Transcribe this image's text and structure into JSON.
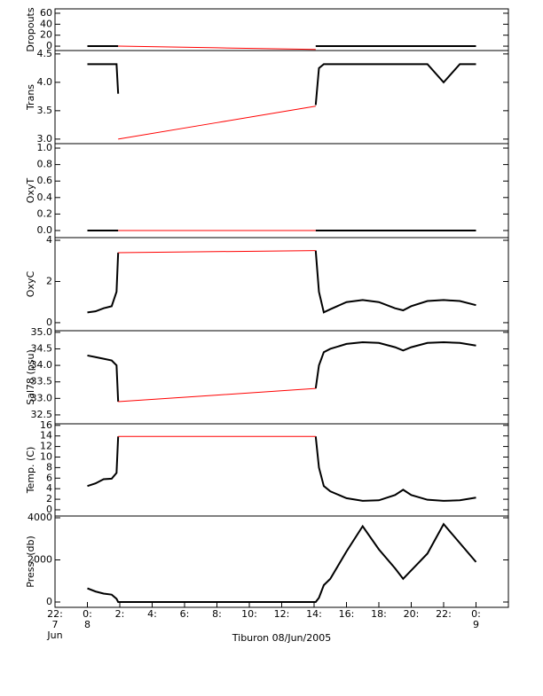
{
  "chart_data": [
    {
      "type": "line",
      "ylabel": "Dropouts",
      "x": [
        0,
        0.5,
        1,
        1.5,
        1.8,
        1.9,
        8,
        14.1,
        14.3,
        14.6,
        15,
        16,
        17,
        18,
        19,
        19.5,
        20,
        21,
        22,
        23,
        24
      ],
      "xlim": [
        -2,
        26
      ],
      "ylim": [
        -8,
        68
      ],
      "yticks": [
        0,
        20,
        40,
        60
      ],
      "series": [
        {
          "color": "#000000",
          "values": [
            0,
            0,
            0,
            0,
            0,
            0,
            null,
            0,
            0,
            0,
            0,
            0,
            0,
            0,
            0,
            0,
            0,
            0,
            0,
            0,
            0
          ]
        },
        {
          "color": "#ff0000",
          "values": [
            null,
            null,
            null,
            null,
            null,
            0,
            -3,
            -6,
            null,
            null,
            null,
            null,
            null,
            null,
            null,
            null,
            null,
            null,
            null,
            null,
            null
          ]
        }
      ]
    },
    {
      "type": "line",
      "ylabel": "Trans",
      "x": [
        0,
        0.5,
        1,
        1.5,
        1.8,
        1.9,
        8,
        14.1,
        14.3,
        14.6,
        15,
        16,
        17,
        18,
        19,
        19.5,
        20,
        21,
        22,
        23,
        24
      ],
      "xlim": [
        -2,
        26
      ],
      "ylim": [
        2.92,
        4.56
      ],
      "yticks": [
        {
          "value": 3.0,
          "label": "3.0"
        },
        3.5,
        {
          "value": 4.0,
          "label": "4.0"
        },
        4.5
      ],
      "series": [
        {
          "color": "#000000",
          "values": [
            4.32,
            4.32,
            4.32,
            4.32,
            4.32,
            3.8,
            null,
            3.6,
            4.25,
            4.32,
            4.32,
            4.32,
            4.32,
            4.32,
            4.32,
            4.32,
            4.32,
            4.32,
            4.0,
            4.32,
            4.32
          ]
        },
        {
          "color": "#ff0000",
          "values": [
            null,
            null,
            null,
            null,
            null,
            3.0,
            3.29,
            3.58,
            null,
            null,
            null,
            null,
            null,
            null,
            null,
            null,
            null,
            null,
            null,
            null,
            null
          ]
        }
      ]
    },
    {
      "type": "line",
      "ylabel": "OxyT",
      "x": [
        0,
        0.5,
        1,
        1.5,
        1.8,
        1.9,
        8,
        14.1,
        14.3,
        14.6,
        15,
        16,
        17,
        18,
        19,
        19.5,
        20,
        21,
        22,
        23,
        24
      ],
      "xlim": [
        -2,
        26
      ],
      "ylim": [
        -0.086,
        1.054
      ],
      "yticks": [
        {
          "value": 0.0,
          "label": "0.0"
        },
        0.2,
        0.4,
        0.6,
        0.8,
        {
          "value": 1.0,
          "label": "1.0"
        }
      ],
      "series": [
        {
          "color": "#000000",
          "values": [
            0,
            0,
            0,
            0,
            0,
            0,
            null,
            0,
            0,
            0,
            0,
            0,
            0,
            0,
            0,
            0,
            0,
            0,
            0,
            0,
            0
          ]
        },
        {
          "color": "#ff0000",
          "values": [
            null,
            null,
            null,
            null,
            null,
            0,
            0,
            0,
            null,
            null,
            null,
            null,
            null,
            null,
            null,
            null,
            null,
            null,
            null,
            null,
            null
          ]
        }
      ]
    },
    {
      "type": "line",
      "ylabel": "OxyC",
      "x": [
        0,
        0.5,
        1,
        1.5,
        1.8,
        1.9,
        8,
        14.1,
        14.3,
        14.6,
        15,
        16,
        17,
        18,
        19,
        19.5,
        20,
        21,
        22,
        23,
        24
      ],
      "xlim": [
        -2,
        26
      ],
      "ylim": [
        -0.39,
        4.13
      ],
      "yticks": [
        0,
        2,
        4
      ],
      "series": [
        {
          "color": "#000000",
          "values": [
            0.5,
            0.55,
            0.7,
            0.8,
            1.5,
            3.4,
            null,
            3.5,
            1.5,
            0.5,
            0.65,
            1.0,
            1.1,
            1.0,
            0.7,
            0.6,
            0.8,
            1.05,
            1.1,
            1.05,
            0.85
          ]
        },
        {
          "color": "#ff0000",
          "values": [
            null,
            null,
            null,
            null,
            null,
            3.4,
            3.45,
            3.5,
            null,
            null,
            null,
            null,
            null,
            null,
            null,
            null,
            null,
            null,
            null,
            null,
            null
          ]
        }
      ]
    },
    {
      "type": "line",
      "ylabel": "Sal78 (psu)",
      "x": [
        0,
        0.5,
        1,
        1.5,
        1.8,
        1.9,
        8,
        14.1,
        14.3,
        14.6,
        15,
        16,
        17,
        18,
        19,
        19.5,
        20,
        21,
        22,
        23,
        24
      ],
      "xlim": [
        -2,
        26
      ],
      "ylim": [
        32.23,
        35.05
      ],
      "yticks": [
        32.5,
        {
          "value": 33.0,
          "label": "33.0"
        },
        33.5,
        {
          "value": 34.0,
          "label": "34.0"
        },
        34.5,
        {
          "value": 35.0,
          "label": "35.0"
        }
      ],
      "series": [
        {
          "color": "#000000",
          "values": [
            34.3,
            34.25,
            34.2,
            34.15,
            34.0,
            32.9,
            null,
            33.3,
            34.0,
            34.4,
            34.5,
            34.65,
            34.7,
            34.68,
            34.55,
            34.45,
            34.55,
            34.68,
            34.7,
            34.68,
            34.6
          ]
        },
        {
          "color": "#ff0000",
          "values": [
            null,
            null,
            null,
            null,
            null,
            32.9,
            33.1,
            33.3,
            null,
            null,
            null,
            null,
            null,
            null,
            null,
            null,
            null,
            null,
            null,
            null,
            null
          ]
        }
      ]
    },
    {
      "type": "line",
      "ylabel": "Temp. (C)",
      "x": [
        0,
        0.5,
        1,
        1.5,
        1.8,
        1.9,
        8,
        14.1,
        14.3,
        14.6,
        15,
        16,
        17,
        18,
        19,
        19.5,
        20,
        21,
        22,
        23,
        24
      ],
      "xlim": [
        -2,
        26
      ],
      "ylim": [
        -1.18,
        16.3
      ],
      "yticks": [
        0,
        2,
        4,
        6,
        8,
        10,
        12,
        14,
        16
      ],
      "series": [
        {
          "color": "#000000",
          "values": [
            4.5,
            5.0,
            5.8,
            5.9,
            7.0,
            13.9,
            null,
            13.9,
            8,
            4.5,
            3.5,
            2.2,
            1.7,
            1.8,
            2.8,
            3.8,
            2.8,
            1.9,
            1.7,
            1.8,
            2.3
          ]
        },
        {
          "color": "#ff0000",
          "values": [
            null,
            null,
            null,
            null,
            null,
            13.9,
            13.9,
            13.9,
            null,
            null,
            null,
            null,
            null,
            null,
            null,
            null,
            null,
            null,
            null,
            null,
            null
          ]
        }
      ]
    },
    {
      "type": "line",
      "ylabel": "Press. (db)",
      "xlabel": "Tiburon 08/Jun/2005",
      "x": [
        0,
        0.5,
        1,
        1.5,
        1.8,
        1.9,
        8,
        14.1,
        14.3,
        14.6,
        15,
        16,
        17,
        18,
        19,
        19.5,
        20,
        21,
        22,
        23,
        24
      ],
      "xlim": [
        -2,
        26
      ],
      "ylim": [
        -253,
        4084
      ],
      "yticks": [
        0,
        2000,
        4000
      ],
      "xticks": [
        {
          "value": -2,
          "label": "22:\n7\nJun"
        },
        {
          "value": 0,
          "label": "0:\n8"
        },
        {
          "value": 2,
          "label": "2:"
        },
        {
          "value": 4,
          "label": "4:"
        },
        {
          "value": 6,
          "label": "6:"
        },
        {
          "value": 8,
          "label": "8:"
        },
        {
          "value": 10,
          "label": "10:"
        },
        {
          "value": 12,
          "label": "12:"
        },
        {
          "value": 14,
          "label": "14:"
        },
        {
          "value": 16,
          "label": "16:"
        },
        {
          "value": 18,
          "label": "18:"
        },
        {
          "value": 20,
          "label": "20:"
        },
        {
          "value": 22,
          "label": "22:"
        },
        {
          "value": 24,
          "label": "0:\n9"
        }
      ],
      "series": [
        {
          "color": "#000000",
          "values": [
            650,
            500,
            400,
            350,
            150,
            0,
            0,
            0,
            200,
            800,
            1100,
            2400,
            3600,
            2500,
            1600,
            1100,
            1500,
            2300,
            3700,
            2800,
            1900
          ]
        }
      ]
    }
  ]
}
